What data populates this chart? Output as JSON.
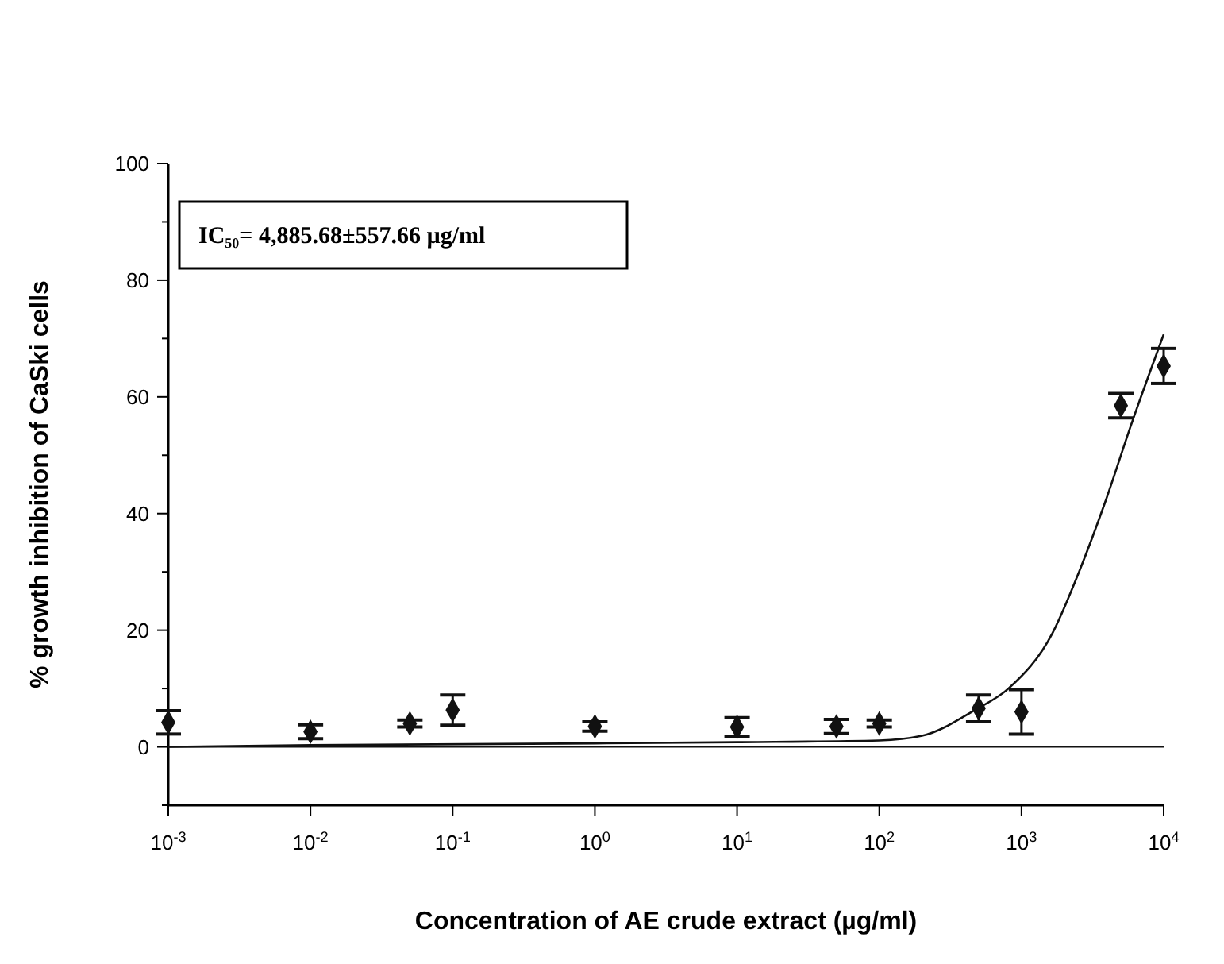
{
  "chart_data": {
    "type": "scatter",
    "xlabel": "Concentration of AE crude extract (µg/ml)",
    "ylabel": "% growth inhibition of CaSki cells",
    "log": "x",
    "marker": "diamond",
    "ref_lines": [
      {
        "axis": "y",
        "value": 0,
        "color": "#111111"
      }
    ],
    "xlim": [
      0.001,
      10000
    ],
    "xticks": [
      {
        "value": 0.001,
        "label": "10$^{-3}$"
      },
      {
        "value": 0.01,
        "label": "10$^{-2}$"
      },
      {
        "value": 0.1,
        "label": "10$^{-1}$"
      },
      {
        "value": 1,
        "label": "10$^{0}$"
      },
      {
        "value": 10,
        "label": "10$^{1}$"
      },
      {
        "value": 100,
        "label": "10$^{2}$"
      },
      {
        "value": 1000,
        "label": "10$^{3}$"
      },
      {
        "value": 10000,
        "label": "10$^{4}$"
      }
    ],
    "ylim": [
      -10,
      100
    ],
    "yticks": [
      {
        "value": -10,
        "label": null
      },
      0,
      {
        "value": 10,
        "label": null
      },
      20,
      {
        "value": 30,
        "label": null
      },
      40,
      {
        "value": 50,
        "label": null
      },
      60,
      {
        "value": 70,
        "label": null
      },
      80,
      {
        "value": 90,
        "label": null
      },
      100
    ],
    "series": [
      {
        "color": "#111111",
        "x": [
          0.001,
          0.01,
          0.05,
          0.1,
          1,
          10,
          50,
          100,
          500,
          1000,
          5000,
          10000
        ],
        "values": [
          4.2,
          2.6,
          4.0,
          6.3,
          3.5,
          3.4,
          3.5,
          4.0,
          6.6,
          6.0,
          58.5,
          65.3
        ],
        "errors": [
          2,
          1.2,
          0.6,
          2.6,
          0.8,
          1.6,
          1.2,
          0.6,
          2.3,
          3.8,
          2.1,
          3
        ]
      },
      {
        "type": "line",
        "color": "#111111",
        "line_style": "solid",
        "marker": "none",
        "x": [
          0.001,
          0.01,
          1,
          10,
          100,
          200,
          468,
          810,
          1660,
          2540,
          3870,
          5900,
          10000
        ],
        "values": [
          0,
          0.3,
          0.6,
          0.8,
          1.1,
          1.9,
          6.3,
          10,
          19.6,
          30,
          41.9,
          55.2,
          70.7
        ]
      }
    ],
    "annotations": [
      "IC₅₀= 4,885.68±557.66 µg/ml"
    ]
  }
}
